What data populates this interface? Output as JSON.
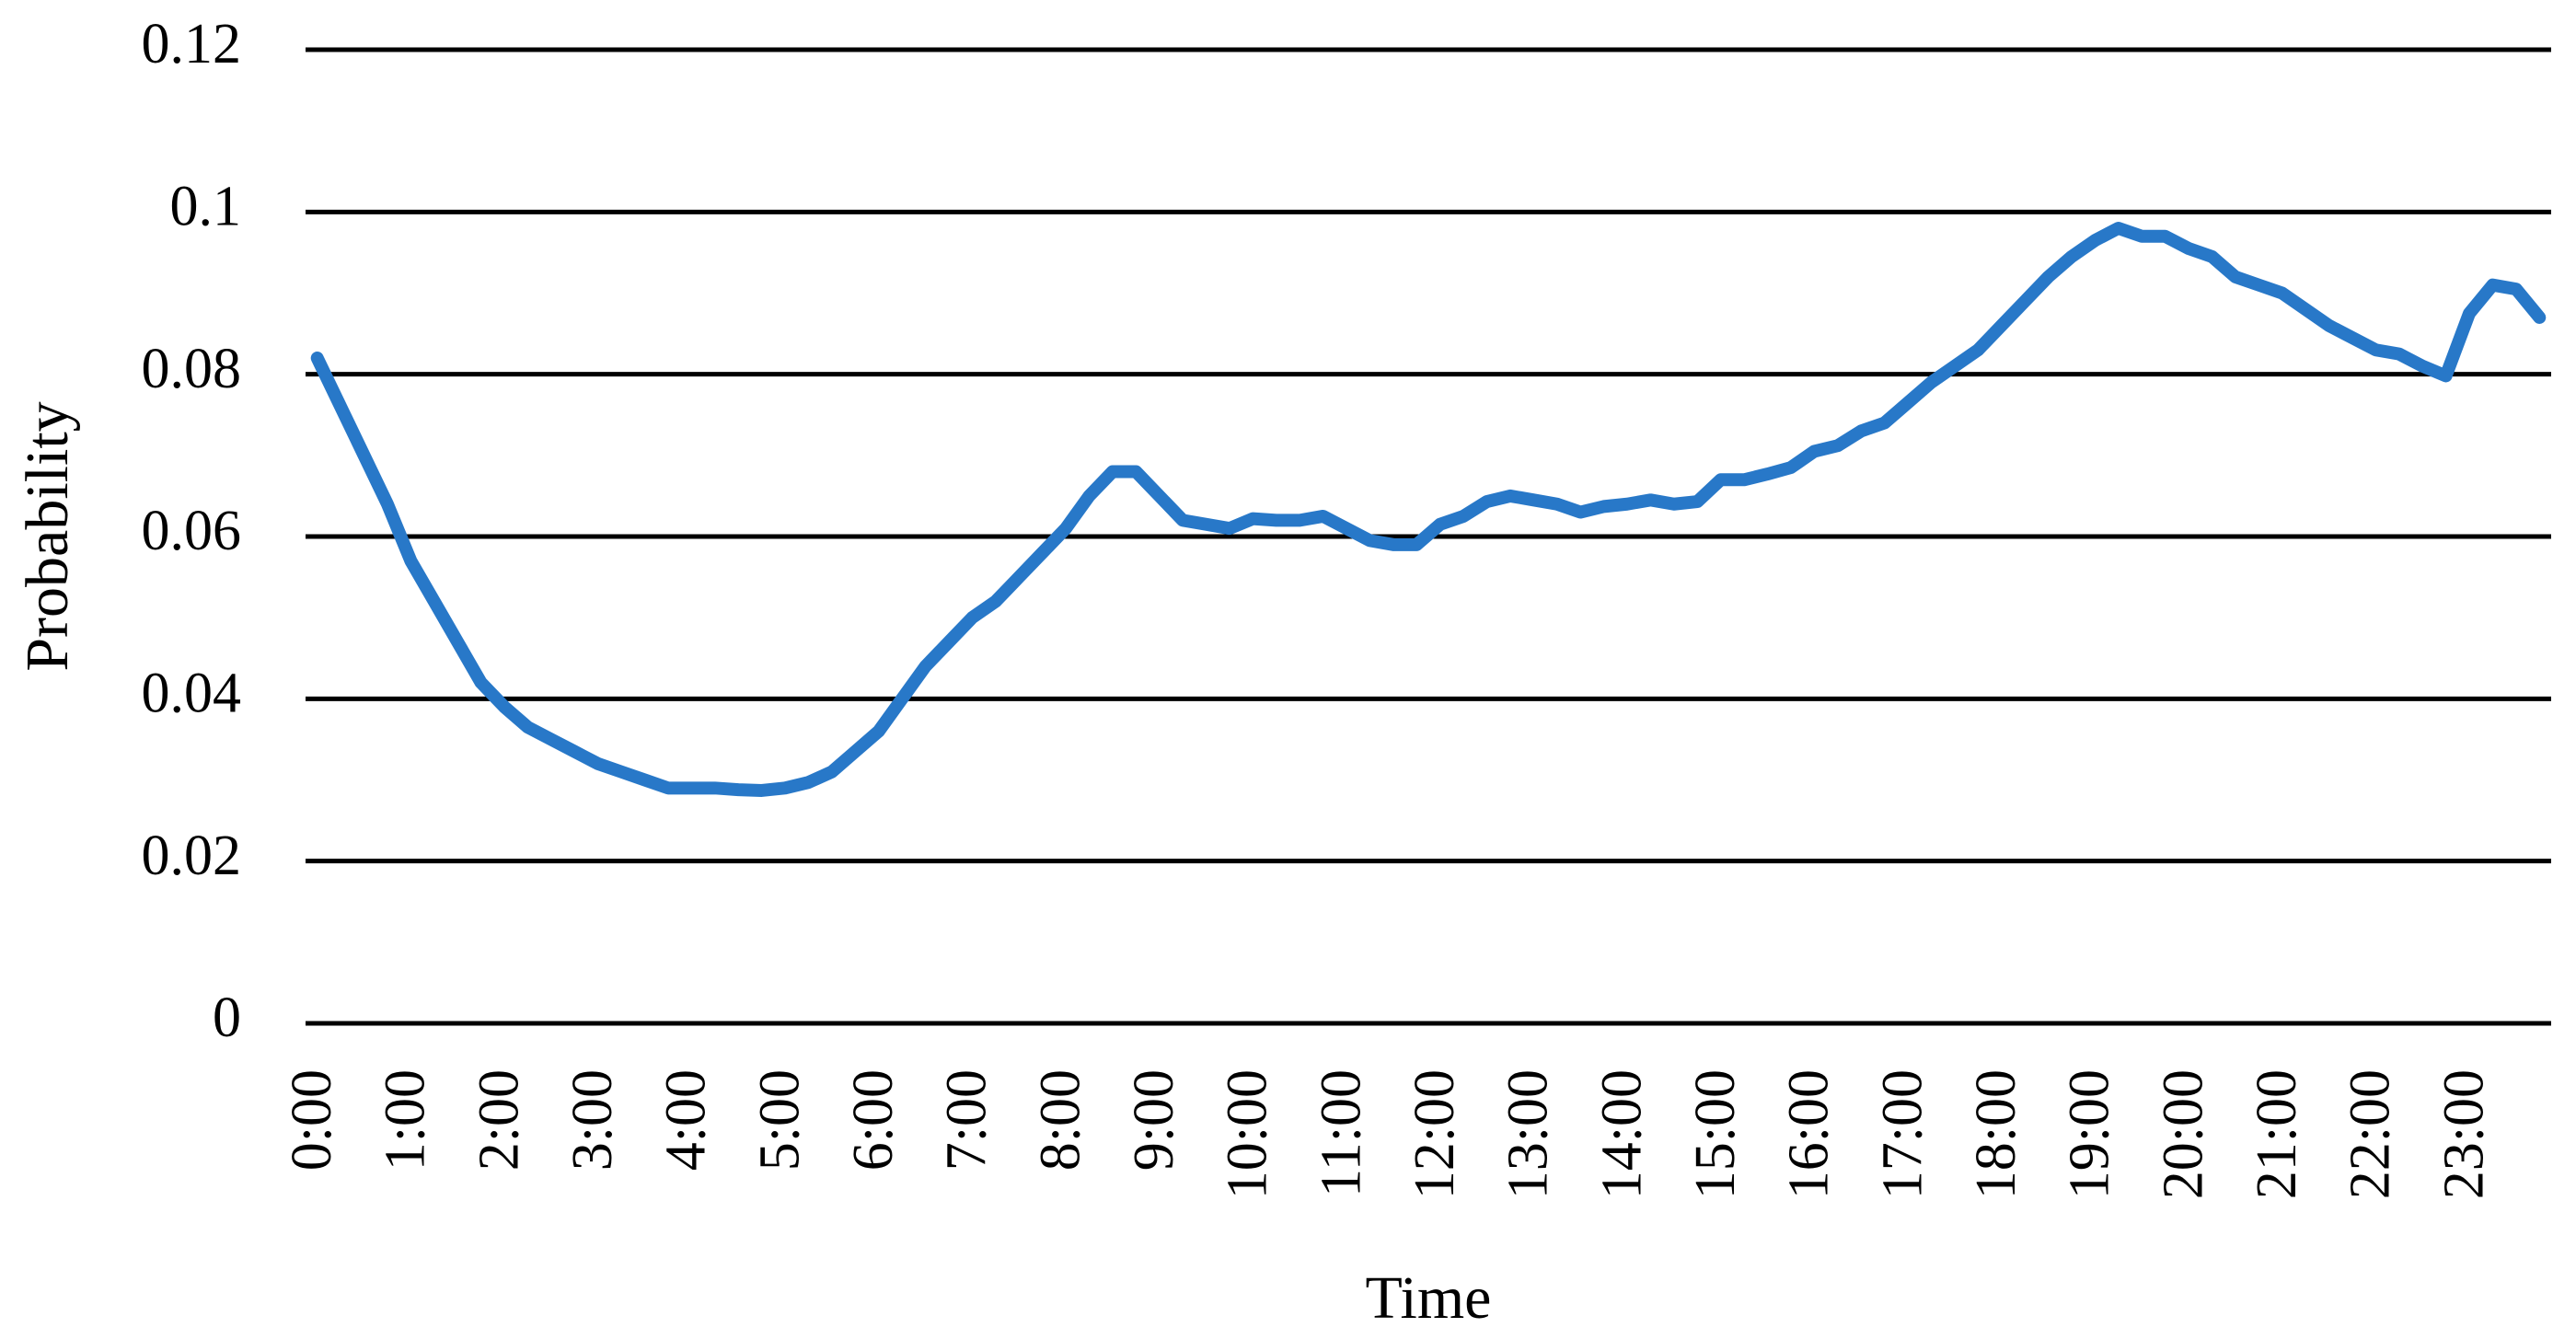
{
  "chart_data": {
    "type": "line",
    "x_label": "Time",
    "y_label": "Probability",
    "categories": [
      "0:00",
      null,
      null,
      null,
      "1:00",
      null,
      null,
      null,
      "2:00",
      null,
      null,
      null,
      "3:00",
      null,
      null,
      null,
      "4:00",
      null,
      null,
      null,
      "5:00",
      null,
      null,
      null,
      "6:00",
      null,
      null,
      null,
      "7:00",
      null,
      null,
      null,
      "8:00",
      null,
      null,
      null,
      "9:00",
      null,
      null,
      null,
      "10:00",
      null,
      null,
      null,
      "11:00",
      null,
      null,
      null,
      "12:00",
      null,
      null,
      null,
      "13:00",
      null,
      null,
      null,
      "14:00",
      null,
      null,
      null,
      "15:00",
      null,
      null,
      null,
      "16:00",
      null,
      null,
      null,
      "17:00",
      null,
      null,
      null,
      "18:00",
      null,
      null,
      null,
      "19:00",
      null,
      null,
      null,
      "20:00",
      null,
      null,
      null,
      "21:00",
      null,
      null,
      null,
      "22:00",
      null,
      null,
      null,
      "23:00",
      null,
      null,
      null
    ],
    "values": [
      0.082,
      0.076,
      0.07,
      0.064,
      0.057,
      0.052,
      0.047,
      0.042,
      0.039,
      0.0365,
      0.035,
      0.0335,
      0.032,
      0.031,
      0.03,
      0.029,
      0.029,
      0.029,
      0.0288,
      0.0287,
      0.029,
      0.0297,
      0.031,
      0.0335,
      0.036,
      0.04,
      0.044,
      0.047,
      0.05,
      0.052,
      0.055,
      0.058,
      0.061,
      0.065,
      0.068,
      0.068,
      0.065,
      0.062,
      0.0615,
      0.061,
      0.0622,
      0.062,
      0.062,
      0.0625,
      0.061,
      0.0595,
      0.059,
      0.059,
      0.0615,
      0.0625,
      0.0643,
      0.065,
      0.0645,
      0.064,
      0.063,
      0.0637,
      0.064,
      0.0645,
      0.064,
      0.0643,
      0.067,
      0.067,
      0.0677,
      0.0685,
      0.0705,
      0.0712,
      0.073,
      0.074,
      0.0765,
      0.079,
      0.081,
      0.083,
      0.086,
      0.089,
      0.092,
      0.0945,
      0.0965,
      0.098,
      0.097,
      0.097,
      0.0955,
      0.0945,
      0.092,
      0.091,
      0.09,
      0.088,
      0.086,
      0.0845,
      0.083,
      0.0825,
      0.081,
      0.0798,
      0.0875,
      0.091,
      0.0905,
      0.087
    ],
    "color": "#2878c8",
    "ylim": [
      0,
      0.12
    ],
    "yticks": [
      0,
      0.02,
      0.04,
      0.06,
      0.08,
      0.1,
      0.12
    ],
    "grid": true
  }
}
